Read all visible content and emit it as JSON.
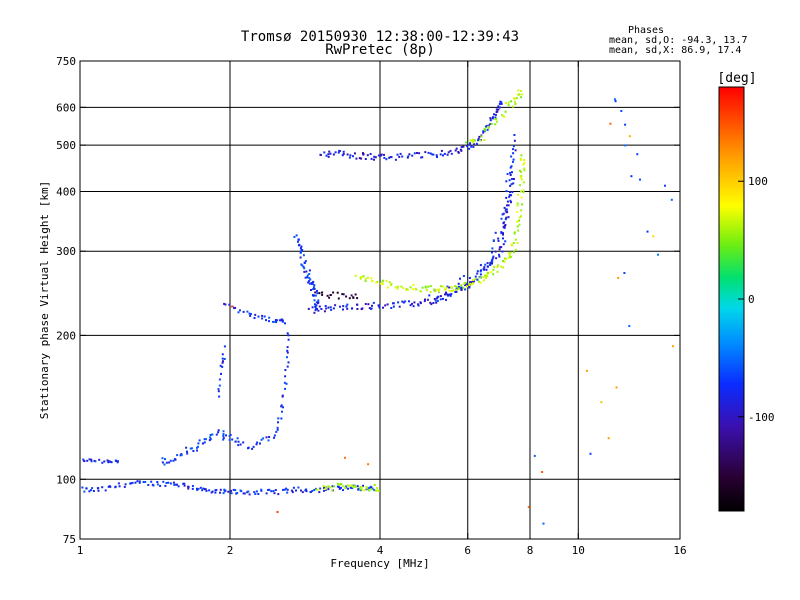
{
  "chart_data": {
    "type": "scatter",
    "title": "Tromsø 20150930 12:38:00-12:39:43",
    "subtitle": "RwPretec (8p)",
    "stats": {
      "heading": "Phases",
      "line1": "mean, sd,O: -94.3, 13.7",
      "line2": "mean, sd,X:  86.9, 17.4"
    },
    "xlabel": "Frequency [MHz]",
    "ylabel": "Stationary phase Virtual Height [km]",
    "x_scale": "log",
    "y_scale": "log",
    "xlim": [
      1,
      16
    ],
    "ylim": [
      75,
      750
    ],
    "x_ticks": [
      {
        "v": 1,
        "label": "1"
      },
      {
        "v": 2,
        "label": "2"
      },
      {
        "v": 4,
        "label": "4"
      },
      {
        "v": 6,
        "label": "6"
      },
      {
        "v": 8,
        "label": "8"
      },
      {
        "v": 10,
        "label": "10"
      },
      {
        "v": 16,
        "label": "16"
      }
    ],
    "y_ticks": [
      {
        "v": 75,
        "label": "75"
      },
      {
        "v": 100,
        "label": "100"
      },
      {
        "v": 200,
        "label": "200"
      },
      {
        "v": 300,
        "label": "300"
      },
      {
        "v": 400,
        "label": "400"
      },
      {
        "v": 500,
        "label": "500"
      },
      {
        "v": 600,
        "label": "600"
      },
      {
        "v": 750,
        "label": "750"
      }
    ],
    "grid_x": [
      2,
      4,
      6,
      8,
      10
    ],
    "grid_y": [
      100,
      200,
      300,
      400,
      500,
      600
    ],
    "colorbar": {
      "label": "[deg]",
      "range": [
        -180,
        180
      ],
      "ticks": [
        {
          "v": 100,
          "label": "100"
        },
        {
          "v": 0,
          "label": "0"
        },
        {
          "v": -100,
          "label": "-100"
        }
      ]
    },
    "traces": [
      {
        "x": [
          1,
          1.1,
          1.25,
          1.4,
          1.55,
          1.7,
          1.85,
          2,
          2.2,
          2.45,
          2.7,
          3,
          3.3,
          3.6,
          3.9
        ],
        "y": [
          95,
          95,
          98,
          98,
          98,
          96,
          94,
          94,
          94,
          94,
          95,
          95,
          96,
          96,
          96
        ],
        "phase": -110,
        "n": 160,
        "jy": 0.012,
        "jx": 0.01
      },
      {
        "x": [
          1.0,
          1.05,
          1.1
        ],
        "y": [
          110,
          110,
          109
        ],
        "phase": -115,
        "n": 12,
        "jy": 0.008,
        "jx": 0.01
      },
      {
        "x": [
          1.12,
          1.2
        ],
        "y": [
          109,
          109
        ],
        "phase": -115,
        "n": 10,
        "jy": 0.006,
        "jx": 0.01
      },
      {
        "x": [
          1.45,
          1.6,
          1.75,
          1.9,
          2.05
        ],
        "y": [
          108,
          112,
          118,
          125,
          120
        ],
        "phase": -108,
        "n": 50,
        "jy": 0.02,
        "jx": 0.015
      },
      {
        "x": [
          2.05,
          2.25,
          2.45,
          2.55,
          2.6,
          2.62
        ],
        "y": [
          118,
          118,
          125,
          140,
          170,
          200
        ],
        "phase": -108,
        "n": 45,
        "jy": 0.02,
        "jx": 0.008
      },
      {
        "x": [
          1.9,
          1.92,
          1.95
        ],
        "y": [
          150,
          170,
          185
        ],
        "phase": -110,
        "n": 14,
        "jy": 0.03,
        "jx": 0.006
      },
      {
        "x": [
          1.95,
          2.2,
          2.45,
          2.58
        ],
        "y": [
          235,
          220,
          215,
          214
        ],
        "phase": -112,
        "n": 35,
        "jy": 0.01,
        "jx": 0.01
      },
      {
        "x": [
          2.72,
          2.8,
          2.88,
          2.95,
          3.0
        ],
        "y": [
          320,
          290,
          265,
          245,
          232
        ],
        "phase": -108,
        "n": 60,
        "jy": 0.035,
        "jx": 0.01
      },
      {
        "x": [
          2.9,
          3.2,
          3.6,
          4.0,
          4.5,
          5.0,
          5.5,
          6.0,
          6.5,
          7.0,
          7.2,
          7.35,
          7.45
        ],
        "y": [
          226,
          228,
          230,
          231,
          232,
          235,
          242,
          255,
          275,
          300,
          350,
          420,
          520
        ],
        "phase": -118,
        "n": 150,
        "jy": 0.015,
        "jx": 0.01
      },
      {
        "x": [
          5.0,
          5.6,
          6.2,
          6.7,
          7.0,
          7.2,
          7.3
        ],
        "y": [
          240,
          250,
          265,
          290,
          330,
          380,
          450
        ],
        "phase": -112,
        "n": 70,
        "jy": 0.03,
        "jx": 0.015
      },
      {
        "x": [
          3.6,
          4.0,
          4.5,
          5.0,
          5.5,
          6.0,
          6.5,
          7.0,
          7.4,
          7.6,
          7.7,
          7.75
        ],
        "y": [
          265,
          258,
          252,
          250,
          250,
          255,
          265,
          280,
          300,
          350,
          420,
          480
        ],
        "phase": 65,
        "n": 150,
        "jy": 0.015,
        "jx": 0.012
      },
      {
        "x": [
          3.05,
          3.3,
          3.6,
          3.9,
          4.3,
          4.8,
          5.3,
          5.8,
          6.2,
          6.5,
          6.8,
          7.0
        ],
        "y": [
          475,
          480,
          475,
          472,
          472,
          475,
          480,
          490,
          505,
          540,
          580,
          620
        ],
        "phase": -120,
        "n": 120,
        "jy": 0.015,
        "jx": 0.01
      },
      {
        "x": [
          6.0,
          6.4,
          6.8,
          7.2,
          7.5,
          7.65
        ],
        "y": [
          500,
          520,
          560,
          600,
          630,
          650
        ],
        "phase": 60,
        "n": 40,
        "jy": 0.02,
        "jx": 0.012
      },
      {
        "x": [
          3.0,
          3.2,
          3.4,
          3.6,
          3.8,
          4.0
        ],
        "y": [
          96,
          96,
          97,
          96,
          96,
          96
        ],
        "phase": 60,
        "n": 35,
        "jy": 0.015,
        "jx": 0.012
      },
      {
        "x": [
          3.0,
          3.3,
          3.6
        ],
        "y": [
          245,
          242,
          240
        ],
        "phase": -150,
        "n": 20,
        "jy": 0.015,
        "jx": 0.012
      },
      {
        "x": [
          11.8,
          12.2,
          12.6,
          13.2,
          14.3,
          15.5
        ],
        "y": [
          620,
          560,
          500,
          420,
          320,
          420
        ],
        "phase": -100,
        "n": 12,
        "jy": 0.12,
        "jx": 0.01
      },
      {
        "x": [
          10.5,
          11.6,
          12.0,
          12.8,
          15.5
        ],
        "y": [
          180,
          120,
          260,
          440,
          200
        ],
        "phase": 110,
        "n": 8,
        "jy": 0.3,
        "jx": 0.02
      },
      {
        "x": [
          8.2,
          8.5,
          10.6,
          12.3,
          12.6
        ],
        "y": [
          112,
          80,
          112,
          270,
          210
        ],
        "phase": -100,
        "n": 5,
        "jy": 0.01,
        "jx": 0.01
      },
      {
        "x": [
          2.0,
          2.5,
          3.4,
          3.8,
          8.0,
          8.5,
          11.5
        ],
        "y": [
          230,
          85,
          112,
          108,
          88,
          104,
          550
        ],
        "phase": 140,
        "n": 7,
        "jy": 0.01,
        "jx": 0.01
      }
    ]
  }
}
